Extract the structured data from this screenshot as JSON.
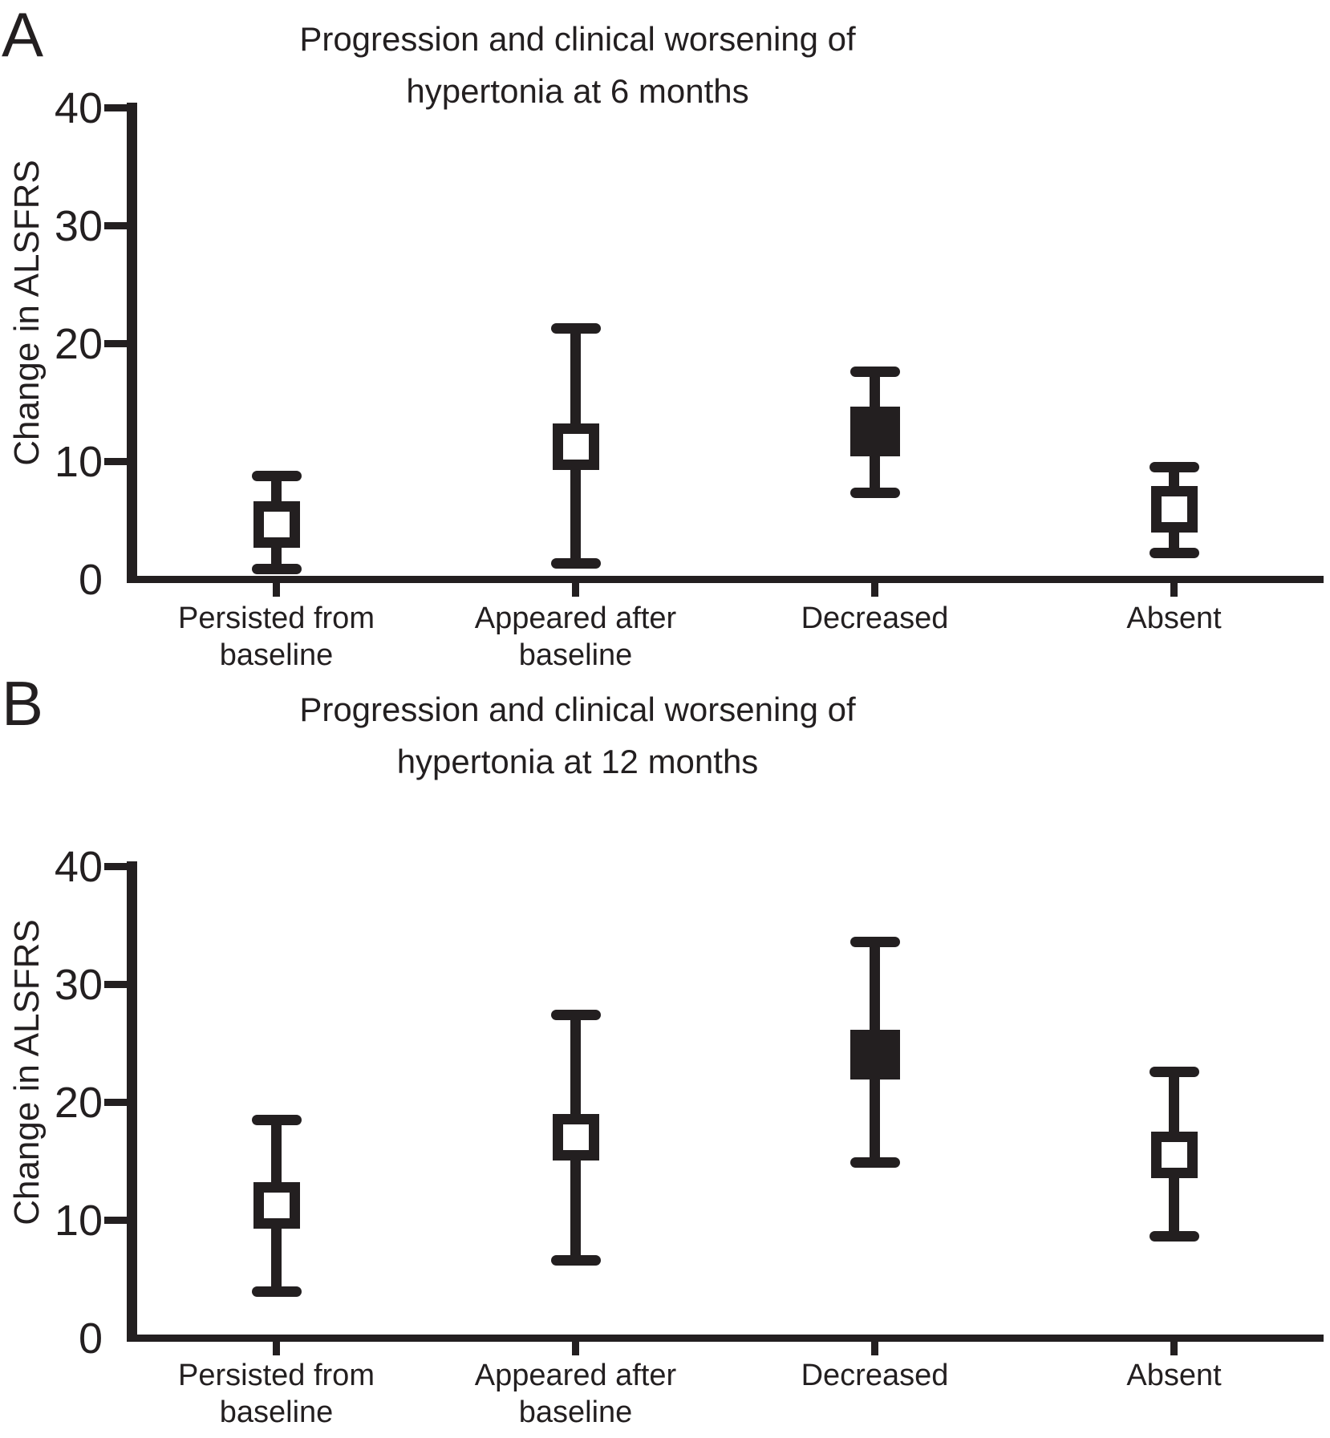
{
  "figure": {
    "background": "#ffffff",
    "ink_color": "#231f20"
  },
  "chart_data": [
    {
      "type": "errorbar",
      "panel_letter": "A",
      "title_lines": [
        "Progression and clinical worsening of",
        "hypertonia at 6 months"
      ],
      "ylabel": "Change in ALSFRS",
      "ylim": [
        0,
        40
      ],
      "yticks": [
        0,
        10,
        20,
        30,
        40
      ],
      "grid": false,
      "categories": [
        [
          "Persisted from",
          "baseline"
        ],
        [
          "Appeared after",
          "baseline"
        ],
        [
          "Decreased"
        ],
        [
          "Absent"
        ]
      ],
      "points": [
        {
          "category": "Persisted from baseline",
          "mean": 4.6,
          "lo": 0.8,
          "hi": 8.8,
          "marker": "open-square"
        },
        {
          "category": "Appeared after baseline",
          "mean": 11.2,
          "lo": 1.3,
          "hi": 21.3,
          "marker": "open-square"
        },
        {
          "category": "Decreased",
          "mean": 12.5,
          "lo": 7.3,
          "hi": 17.6,
          "marker": "filled-square"
        },
        {
          "category": "Absent",
          "mean": 5.9,
          "lo": 2.2,
          "hi": 9.5,
          "marker": "open-square"
        }
      ]
    },
    {
      "type": "errorbar",
      "panel_letter": "B",
      "title_lines": [
        "Progression and clinical worsening of",
        "hypertonia at 12 months"
      ],
      "ylabel": "Change in ALSFRS",
      "ylim": [
        0,
        40
      ],
      "yticks": [
        0,
        10,
        20,
        30,
        40
      ],
      "grid": false,
      "categories": [
        [
          "Persisted from",
          "baseline"
        ],
        [
          "Appeared after",
          "baseline"
        ],
        [
          "Decreased"
        ],
        [
          "Absent"
        ]
      ],
      "points": [
        {
          "category": "Persisted from baseline",
          "mean": 11.2,
          "lo": 3.9,
          "hi": 18.5,
          "marker": "open-square"
        },
        {
          "category": "Appeared after baseline",
          "mean": 17.0,
          "lo": 6.5,
          "hi": 27.4,
          "marker": "open-square"
        },
        {
          "category": "Decreased",
          "mean": 24.0,
          "lo": 14.8,
          "hi": 33.6,
          "marker": "filled-square"
        },
        {
          "category": "Absent",
          "mean": 15.5,
          "lo": 8.6,
          "hi": 22.6,
          "marker": "open-square"
        }
      ]
    }
  ]
}
